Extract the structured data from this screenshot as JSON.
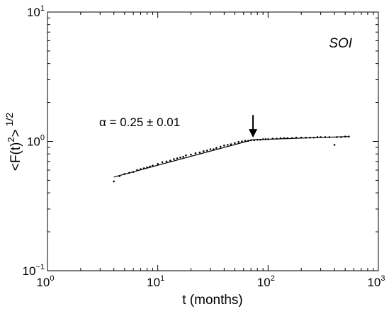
{
  "chart_data": {
    "type": "scatter",
    "series_tag": "SOI",
    "xlabel": "t (months)",
    "ylabel": "<F(t)",
    "ylabel_sup": "2",
    "ylabel_tail": ">",
    "ylabel_power": "1/2",
    "scale": {
      "x": "log",
      "y": "log"
    },
    "xlim": [
      1,
      1000
    ],
    "ylim": [
      0.1,
      10
    ],
    "grid": false,
    "x_ticks": [
      {
        "value": 1,
        "base": "10",
        "exp": "0"
      },
      {
        "value": 10,
        "base": "10",
        "exp": "1"
      },
      {
        "value": 100,
        "base": "10",
        "exp": "2"
      },
      {
        "value": 1000,
        "base": "10",
        "exp": "3"
      }
    ],
    "y_ticks": [
      {
        "value": 0.1,
        "base": "10",
        "exp": "−1"
      },
      {
        "value": 1,
        "base": "10",
        "exp": "0"
      },
      {
        "value": 10,
        "base": "10",
        "exp": "1"
      }
    ],
    "annotation": {
      "text": "α = 0.25 ± 0.01"
    },
    "arrow": {
      "x": 73,
      "y_tip": 1.03,
      "y_tail": 1.6
    },
    "fit_line": {
      "x": [
        4,
        73,
        540
      ],
      "y": [
        0.53,
        1.03,
        1.09
      ]
    },
    "points": [
      [
        4,
        0.49
      ],
      [
        4.5,
        0.54
      ],
      [
        5,
        0.56
      ],
      [
        5.5,
        0.57
      ],
      [
        6,
        0.58
      ],
      [
        6.5,
        0.6
      ],
      [
        7,
        0.61
      ],
      [
        7.5,
        0.62
      ],
      [
        8,
        0.63
      ],
      [
        8.5,
        0.64
      ],
      [
        9,
        0.65
      ],
      [
        10,
        0.67
      ],
      [
        11,
        0.69
      ],
      [
        12,
        0.7
      ],
      [
        13,
        0.71
      ],
      [
        14,
        0.73
      ],
      [
        15,
        0.74
      ],
      [
        16,
        0.75
      ],
      [
        17,
        0.76
      ],
      [
        18,
        0.78
      ],
      [
        20,
        0.79
      ],
      [
        22,
        0.81
      ],
      [
        24,
        0.82
      ],
      [
        26,
        0.84
      ],
      [
        28,
        0.85
      ],
      [
        30,
        0.87
      ],
      [
        32,
        0.87
      ],
      [
        34,
        0.89
      ],
      [
        37,
        0.91
      ],
      [
        40,
        0.93
      ],
      [
        43,
        0.94
      ],
      [
        46,
        0.95
      ],
      [
        50,
        0.97
      ],
      [
        54,
        0.99
      ],
      [
        58,
        1.0
      ],
      [
        62,
        1.01
      ],
      [
        66,
        1.01
      ],
      [
        70,
        1.02
      ],
      [
        75,
        1.02
      ],
      [
        80,
        1.03
      ],
      [
        85,
        1.03
      ],
      [
        90,
        1.04
      ],
      [
        95,
        1.04
      ],
      [
        100,
        1.04
      ],
      [
        110,
        1.05
      ],
      [
        120,
        1.05
      ],
      [
        130,
        1.06
      ],
      [
        140,
        1.06
      ],
      [
        150,
        1.06
      ],
      [
        165,
        1.06
      ],
      [
        180,
        1.07
      ],
      [
        200,
        1.07
      ],
      [
        220,
        1.07
      ],
      [
        240,
        1.07
      ],
      [
        260,
        1.07
      ],
      [
        280,
        1.08
      ],
      [
        300,
        1.08
      ],
      [
        330,
        1.08
      ],
      [
        360,
        1.08
      ],
      [
        400,
        0.94
      ],
      [
        420,
        1.08
      ],
      [
        460,
        1.08
      ],
      [
        500,
        1.09
      ],
      [
        540,
        1.09
      ]
    ]
  }
}
